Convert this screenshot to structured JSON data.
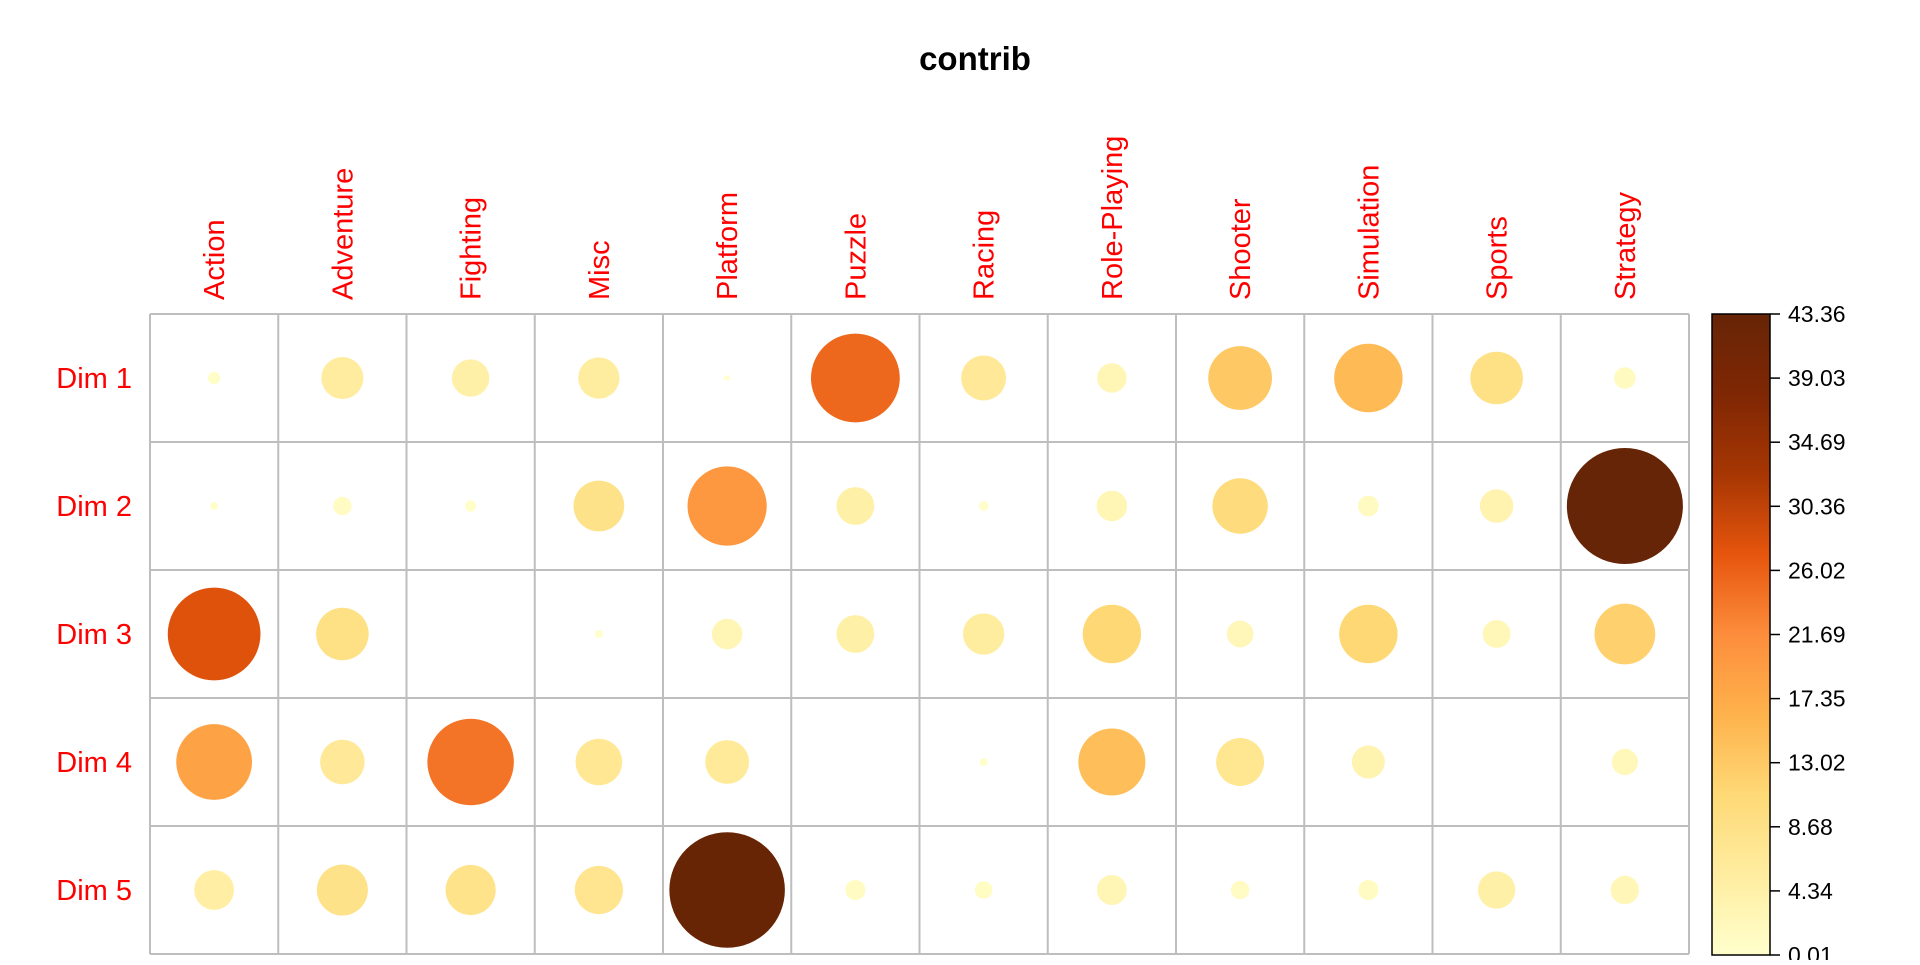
{
  "chart_data": {
    "type": "heatmap",
    "title": "contrib",
    "columns": [
      "Action",
      "Adventure",
      "Fighting",
      "Misc",
      "Platform",
      "Puzzle",
      "Racing",
      "Role-Playing",
      "Shooter",
      "Simulation",
      "Sports",
      "Strategy"
    ],
    "rows": [
      "Dim 1",
      "Dim 2",
      "Dim 3",
      "Dim 4",
      "Dim 5"
    ],
    "values": [
      [
        0.5,
        5.7,
        4.5,
        5.5,
        0.1,
        25.4,
        6.5,
        2.8,
        13.1,
        15.1,
        8.9,
        1.5
      ],
      [
        0.2,
        1.1,
        0.4,
        8.3,
        20.2,
        4.6,
        0.3,
        3.0,
        9.9,
        1.4,
        3.6,
        43.4
      ],
      [
        27.7,
        8.9,
        0.0,
        0.2,
        3.0,
        4.6,
        5.5,
        11.0,
        2.3,
        11.0,
        2.5,
        11.9
      ],
      [
        18.5,
        6.4,
        24.1,
        7.0,
        6.2,
        0.0,
        0.2,
        14.5,
        7.4,
        3.5,
        0.0,
        2.2
      ],
      [
        5.1,
        8.4,
        8.1,
        7.5,
        43.0,
        1.3,
        1.0,
        2.9,
        1.1,
        1.3,
        4.5,
        2.6
      ]
    ],
    "colorbar": {
      "ticks": [
        "43.36",
        "39.03",
        "34.69",
        "30.36",
        "26.02",
        "21.69",
        "17.35",
        "13.02",
        "8.68",
        "4.34",
        "0.01"
      ],
      "min": 0.01,
      "max": 43.36,
      "colors": [
        "#FFFFCC",
        "#FFEDA0",
        "#FED976",
        "#FEB24C",
        "#FD8D3C",
        "#E6550D",
        "#A63603",
        "#7F2704",
        "#662506"
      ]
    },
    "label_color": "#FF0000",
    "grid": true
  }
}
